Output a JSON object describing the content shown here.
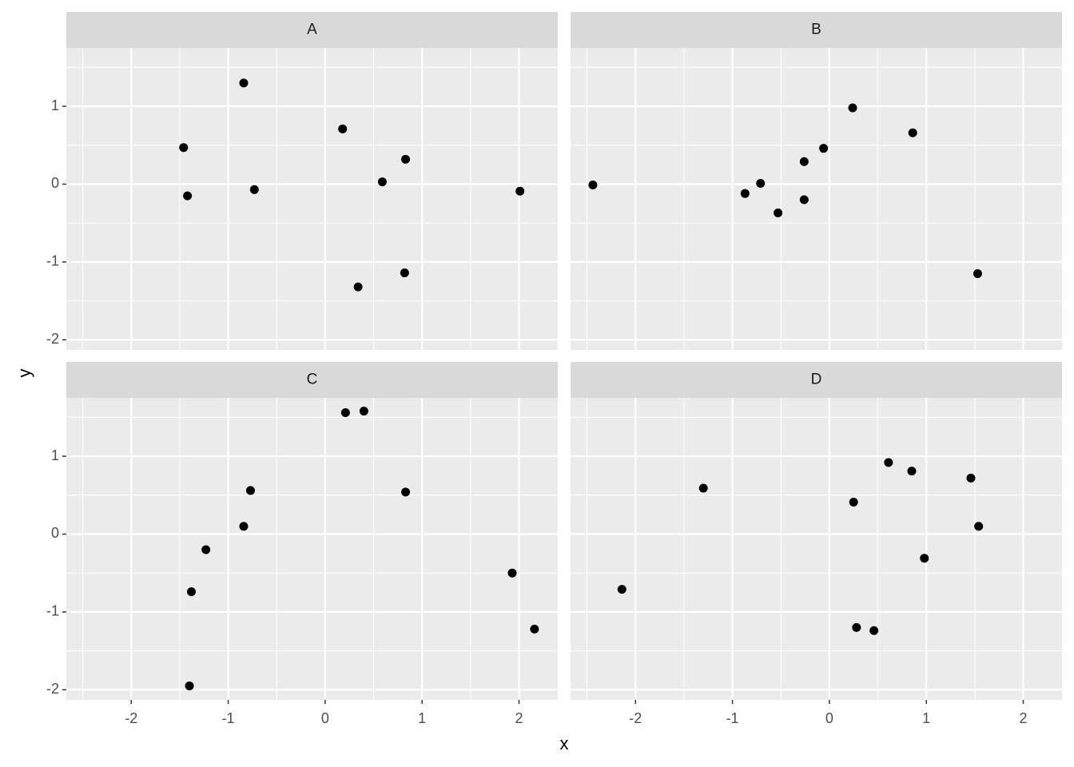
{
  "x_label": "x",
  "y_label": "y",
  "chart_data": [
    {
      "type": "scatter",
      "title": "A",
      "color": "#000000",
      "x": [
        -1.46,
        -1.42,
        -0.84,
        -0.73,
        0.18,
        0.34,
        0.59,
        0.83,
        0.82,
        2.01
      ],
      "y": [
        0.47,
        -0.15,
        1.3,
        -0.07,
        0.71,
        -1.32,
        0.03,
        0.32,
        -1.14,
        -0.09
      ],
      "xlim": [
        -2.67,
        2.4
      ],
      "ylim": [
        -2.13,
        1.75
      ],
      "xticks": [
        -2,
        -1,
        0,
        1,
        2
      ],
      "yticks": [
        -2,
        -1,
        0,
        1
      ],
      "xminor": [
        -2.5,
        -1.5,
        -0.5,
        0.5,
        1.5
      ],
      "yminor": [
        -1.5,
        -0.5,
        0.5,
        1.5
      ],
      "grid": true
    },
    {
      "type": "scatter",
      "title": "B",
      "color": "#000000",
      "x": [
        -2.44,
        -0.87,
        -0.71,
        -0.53,
        -0.26,
        -0.26,
        -0.06,
        0.24,
        0.86,
        1.53
      ],
      "y": [
        -0.01,
        -0.12,
        0.01,
        -0.37,
        0.29,
        -0.2,
        0.46,
        0.98,
        0.66,
        -1.15
      ],
      "xlim": [
        -2.67,
        2.4
      ],
      "ylim": [
        -2.13,
        1.75
      ],
      "xticks": [
        -2,
        -1,
        0,
        1,
        2
      ],
      "yticks": [
        -2,
        -1,
        0,
        1
      ],
      "xminor": [
        -2.5,
        -1.5,
        -0.5,
        0.5,
        1.5
      ],
      "yminor": [
        -1.5,
        -0.5,
        0.5,
        1.5
      ],
      "grid": true
    },
    {
      "type": "scatter",
      "title": "C",
      "color": "#000000",
      "x": [
        0.21,
        0.4,
        -0.77,
        -0.84,
        -1.23,
        -1.38,
        -1.4,
        0.83,
        1.93,
        2.16
      ],
      "y": [
        1.56,
        1.58,
        0.56,
        0.1,
        -0.2,
        -0.74,
        -1.95,
        0.54,
        -0.5,
        -1.22
      ],
      "xlim": [
        -2.67,
        2.4
      ],
      "ylim": [
        -2.13,
        1.75
      ],
      "xticks": [
        -2,
        -1,
        0,
        1,
        2
      ],
      "yticks": [
        -2,
        -1,
        0,
        1
      ],
      "xminor": [
        -2.5,
        -1.5,
        -0.5,
        0.5,
        1.5
      ],
      "yminor": [
        -1.5,
        -0.5,
        0.5,
        1.5
      ],
      "grid": true
    },
    {
      "type": "scatter",
      "title": "D",
      "color": "#000000",
      "x": [
        -2.14,
        -1.3,
        0.25,
        0.28,
        0.46,
        0.61,
        0.85,
        0.98,
        1.46,
        1.54
      ],
      "y": [
        -0.71,
        0.59,
        0.41,
        -1.2,
        -1.24,
        0.92,
        0.81,
        -0.31,
        0.72,
        0.1
      ],
      "xlim": [
        -2.67,
        2.4
      ],
      "ylim": [
        -2.13,
        1.75
      ],
      "xticks": [
        -2,
        -1,
        0,
        1,
        2
      ],
      "yticks": [
        -2,
        -1,
        0,
        1
      ],
      "xminor": [
        -2.5,
        -1.5,
        -0.5,
        0.5,
        1.5
      ],
      "yminor": [
        -1.5,
        -0.5,
        0.5,
        1.5
      ],
      "grid": true
    }
  ]
}
